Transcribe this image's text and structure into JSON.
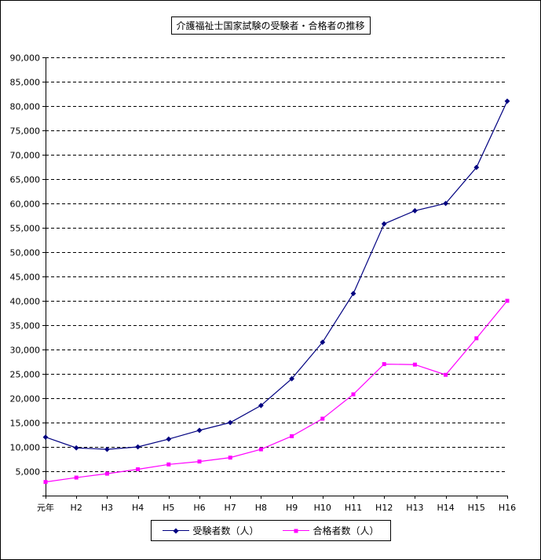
{
  "title": "介護福祉士国家試験の受験者・合格者の推移",
  "chart_data": {
    "type": "line",
    "title": "介護福祉士国家試験の受験者・合格者の推移",
    "categories": [
      "元年",
      "H2",
      "H3",
      "H4",
      "H5",
      "H6",
      "H7",
      "H8",
      "H9",
      "H10",
      "H11",
      "H12",
      "H13",
      "H14",
      "H15",
      "H16"
    ],
    "series": [
      {
        "name": "受験者数（人）",
        "color": "#000080",
        "marker": "diamond",
        "values": [
          12000,
          9800,
          9500,
          10000,
          11600,
          13400,
          15000,
          18500,
          24000,
          31500,
          41500,
          55800,
          58500,
          60000,
          67400,
          81000
        ]
      },
      {
        "name": "合格者数（人）",
        "color": "#FF00FF",
        "marker": "square",
        "values": [
          2800,
          3700,
          4500,
          5400,
          6400,
          7000,
          7800,
          9500,
          12200,
          15800,
          20800,
          27000,
          26900,
          24800,
          32300,
          40000
        ]
      }
    ],
    "xlabel": "",
    "ylabel": "",
    "ylim": [
      0,
      90000
    ],
    "ytick_step": 5000,
    "grid": "dashed-horizontal",
    "legend_position": "bottom",
    "gridline_color": "#000000"
  }
}
